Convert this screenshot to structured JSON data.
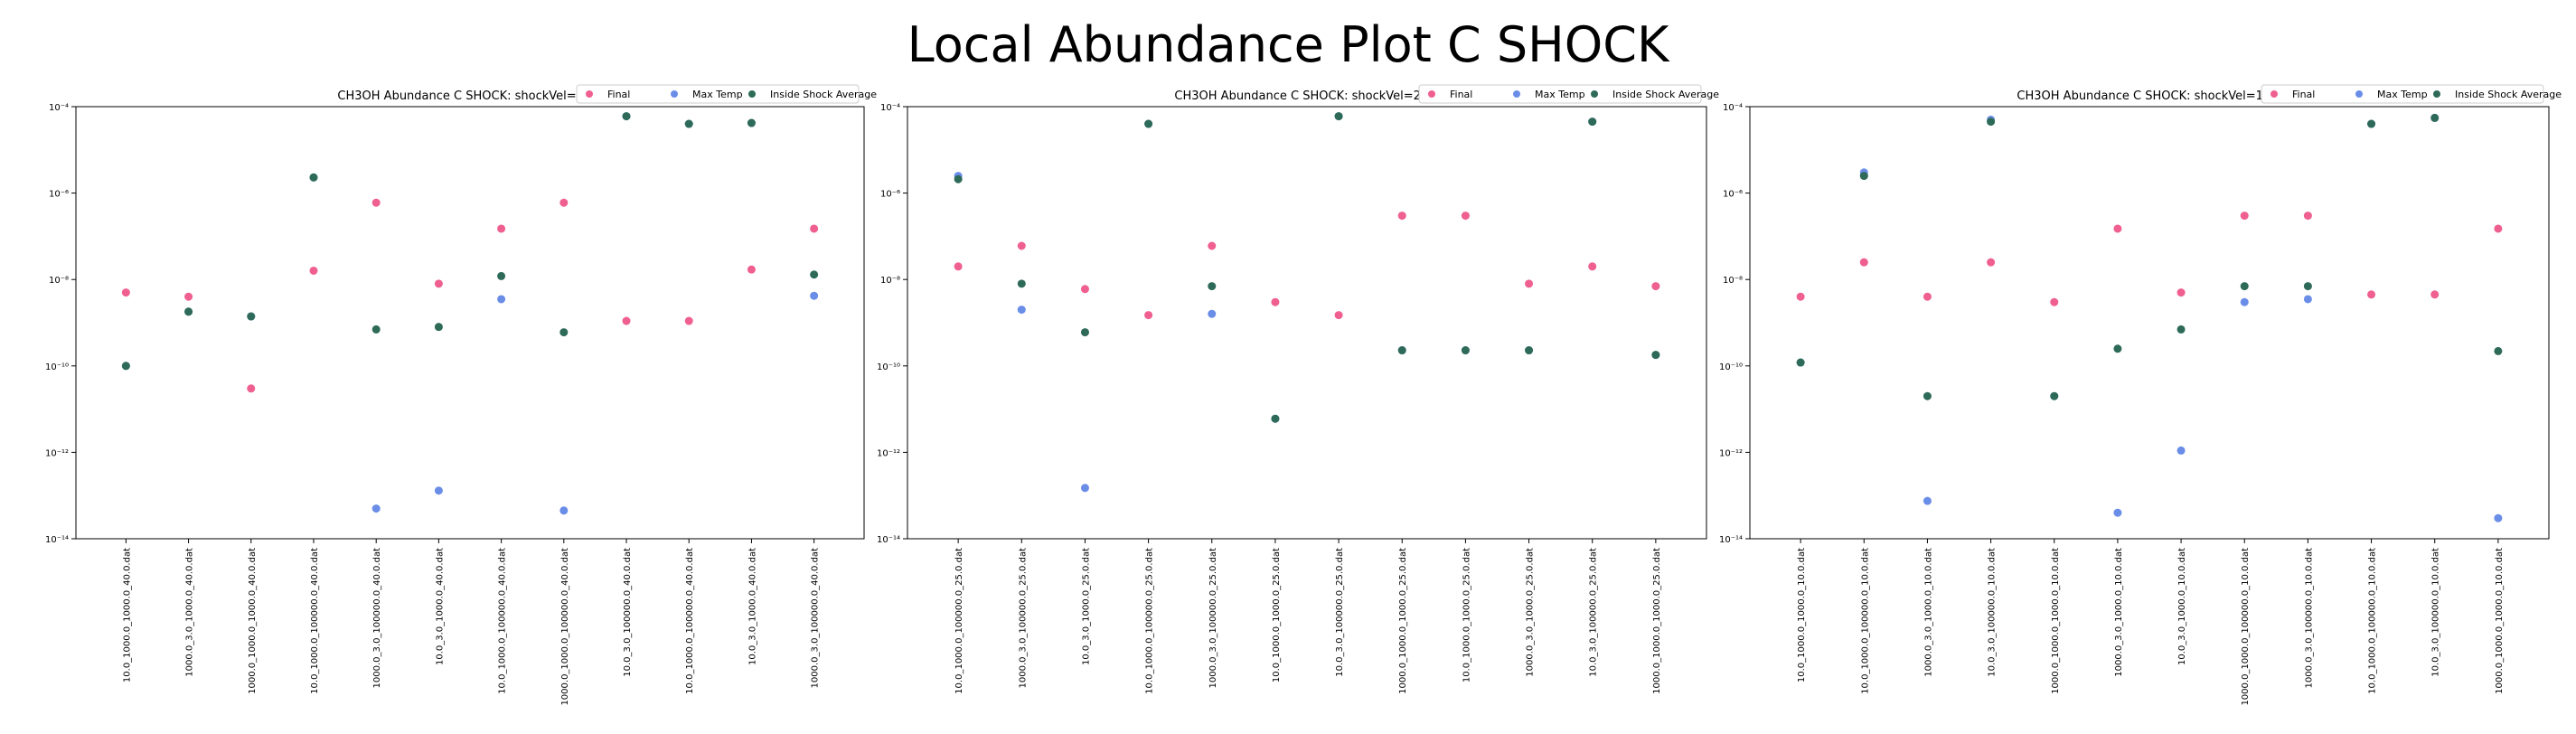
{
  "suptitle": "Local Abundance Plot C SHOCK",
  "colors": {
    "final": "#ef5f8f",
    "max_temp": "#6a8de8",
    "inside_shock_average": "#2e6a58"
  },
  "chart_data": [
    {
      "type": "scatter",
      "title": "CH3OH Abundance C SHOCK: shockVel=40.0",
      "yscale": "log",
      "ylim": [
        1e-14,
        0.0001
      ],
      "yticks": [
        "10⁻¹⁴",
        "10⁻¹²",
        "10⁻¹⁰",
        "10⁻⁸",
        "10⁻⁶",
        "10⁻⁴"
      ],
      "legend_placement": "upper right",
      "categories": [
        "10.0_1000.0_1000.0_40.0.dat",
        "1000.0_3.0_1000.0_40.0.dat",
        "1000.0_1000.0_1000.0_40.0.dat",
        "10.0_1000.0_100000.0_40.0.dat",
        "1000.0_3.0_100000.0_40.0.dat",
        "10.0_3.0_1000.0_40.0.dat",
        "10.0_1000.0_100000.0_40.0.dat",
        "1000.0_1000.0_100000.0_40.0.dat",
        "10.0_3.0_100000.0_40.0.dat",
        "10.0_1000.0_100000.0_40.0.dat",
        "10.0_3.0_1000.0_40.0.dat",
        "1000.0_3.0_100000.0_40.0.dat"
      ],
      "series": [
        {
          "name": "Final",
          "values": [
            5e-09,
            4e-09,
            3e-11,
            1.6e-08,
            6e-07,
            8e-09,
            1.5e-07,
            6e-07,
            1.1e-09,
            1.1e-09,
            1.7e-08,
            1.5e-07
          ]
        },
        {
          "name": "Max Temp",
          "values": [
            1e-10,
            1.8e-09,
            1.4e-09,
            2.3e-06,
            5e-14,
            1.3e-13,
            3.5e-09,
            4.5e-14,
            6e-05,
            4e-05,
            4.2e-05,
            4.2e-09
          ]
        },
        {
          "name": "Inside Shock Average",
          "values": [
            1e-10,
            1.8e-09,
            1.4e-09,
            2.3e-06,
            7e-10,
            8e-10,
            1.2e-08,
            6e-10,
            6e-05,
            4e-05,
            4.2e-05,
            1.3e-08
          ]
        }
      ]
    },
    {
      "type": "scatter",
      "title": "CH3OH Abundance C SHOCK: shockVel=25.0",
      "yscale": "log",
      "ylim": [
        1e-14,
        0.0001
      ],
      "yticks": [
        "10⁻¹⁴",
        "10⁻¹²",
        "10⁻¹⁰",
        "10⁻⁸",
        "10⁻⁶",
        "10⁻⁴"
      ],
      "legend_placement": "upper right",
      "categories": [
        "10.0_1000.0_100000.0_25.0.dat",
        "1000.0_3.0_100000.0_25.0.dat",
        "10.0_3.0_1000.0_25.0.dat",
        "10.0_1000.0_100000.0_25.0.dat",
        "1000.0_3.0_100000.0_25.0.dat",
        "10.0_1000.0_1000.0_25.0.dat",
        "10.0_3.0_100000.0_25.0.dat",
        "1000.0_1000.0_1000.0_25.0.dat",
        "10.0_1000.0_1000.0_25.0.dat",
        "1000.0_3.0_1000.0_25.0.dat",
        "10.0_3.0_100000.0_25.0.dat",
        "1000.0_1000.0_1000.0_25.0.dat"
      ],
      "series": [
        {
          "name": "Final",
          "values": [
            2e-08,
            6e-08,
            6e-09,
            1.5e-09,
            6e-08,
            3e-09,
            1.5e-09,
            3e-07,
            3e-07,
            8e-09,
            2e-08,
            7e-09
          ]
        },
        {
          "name": "Max Temp",
          "values": [
            2.5e-06,
            2e-09,
            1.5e-13,
            4e-05,
            1.6e-09,
            6e-12,
            6e-05,
            2.3e-10,
            2.3e-10,
            2.3e-10,
            4.5e-05,
            1.8e-10
          ]
        },
        {
          "name": "Inside Shock Average",
          "values": [
            2.1e-06,
            8e-09,
            6e-10,
            4e-05,
            7e-09,
            6e-12,
            6e-05,
            2.3e-10,
            2.3e-10,
            2.3e-10,
            4.5e-05,
            1.8e-10
          ]
        }
      ]
    },
    {
      "type": "scatter",
      "title": "CH3OH Abundance C SHOCK: shockVel=10.0",
      "yscale": "log",
      "ylim": [
        1e-14,
        0.0001
      ],
      "yticks": [
        "10⁻¹⁴",
        "10⁻¹²",
        "10⁻¹⁰",
        "10⁻⁸",
        "10⁻⁶",
        "10⁻⁴"
      ],
      "legend_placement": "upper right",
      "categories": [
        "10.0_1000.0_1000.0_10.0.dat",
        "10.0_1000.0_100000.0_10.0.dat",
        "1000.0_3.0_1000.0_10.0.dat",
        "10.0_3.0_100000.0_10.0.dat",
        "1000.0_1000.0_1000.0_10.0.dat",
        "1000.0_3.0_1000.0_10.0.dat",
        "10.0_3.0_1000.0_10.0.dat",
        "1000.0_1000.0_100000.0_10.0.dat",
        "1000.0_3.0_100000.0_10.0.dat",
        "10.0_1000.0_100000.0_10.0.dat",
        "10.0_3.0_100000.0_10.0.dat",
        "1000.0_1000.0_1000.0_10.0.dat"
      ],
      "series": [
        {
          "name": "Final",
          "values": [
            4e-09,
            2.5e-08,
            4e-09,
            2.5e-08,
            3e-09,
            1.5e-07,
            5e-09,
            3e-07,
            3e-07,
            4.5e-09,
            4.5e-09,
            1.5e-07
          ]
        },
        {
          "name": "Max Temp",
          "values": [
            1.2e-10,
            3e-06,
            7.5e-14,
            5e-05,
            2e-11,
            4e-14,
            1.1e-12,
            3e-09,
            3.5e-09,
            4e-05,
            5.5e-05,
            3e-14
          ]
        },
        {
          "name": "Inside Shock Average",
          "values": [
            1.2e-10,
            2.5e-06,
            2e-11,
            4.5e-05,
            2e-11,
            2.5e-10,
            7e-10,
            7e-09,
            7e-09,
            4e-05,
            5.5e-05,
            2.2e-10
          ]
        }
      ]
    }
  ]
}
